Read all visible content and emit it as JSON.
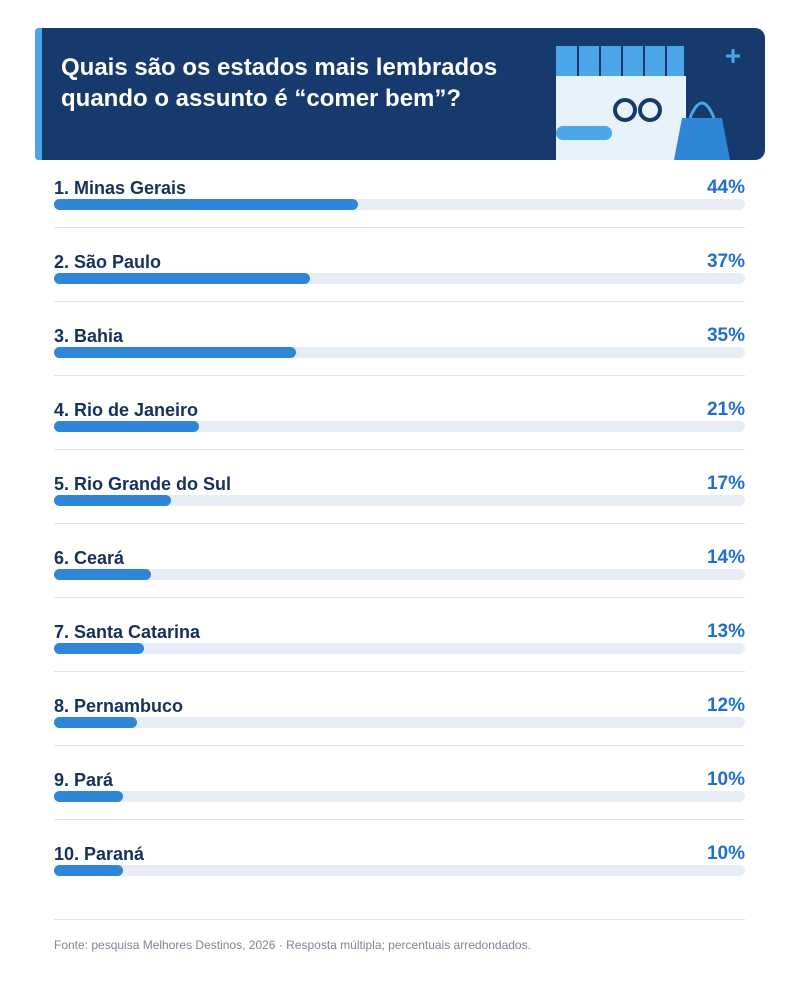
{
  "chart_data": {
    "type": "bar",
    "orientation": "horizontal",
    "title": "Quais são os estados mais lembrados quando o assunto é “comer bem”?",
    "categories": [
      "1. Minas Gerais",
      "2. São Paulo",
      "3. Bahia",
      "4. Rio de Janeiro",
      "5. Rio Grande do Sul",
      "6. Ceará",
      "7. Santa Catarina",
      "8. Pernambuco",
      "9. Pará",
      "10. Paraná"
    ],
    "values": [
      44,
      37,
      35,
      21,
      17,
      14,
      13,
      12,
      10,
      10
    ],
    "value_labels": [
      "44%",
      "37%",
      "35%",
      "21%",
      "17%",
      "14%",
      "13%",
      "12%",
      "10%",
      "10%"
    ],
    "color": "#2f86d6",
    "xlim": [
      0,
      100
    ],
    "source": "Fonte: pesquisa Melhores Destinos, 2026 · Resposta múltipla; percentuais arredondados."
  }
}
